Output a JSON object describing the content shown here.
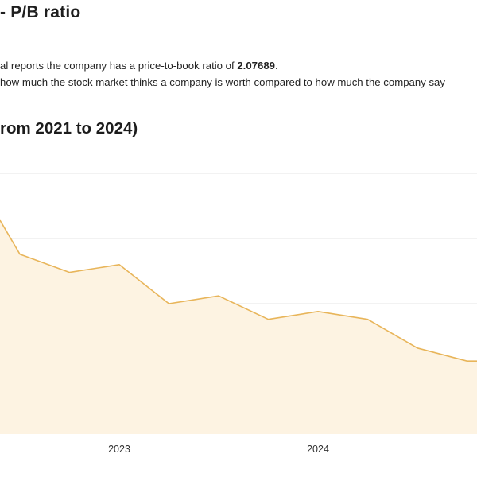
{
  "section": {
    "title": "- P/B ratio"
  },
  "description": {
    "line1_prefix": "al reports the company has a price-to-book ratio of ",
    "line1_value": "2.07689",
    "line1_suffix": ".",
    "line2": " how much the stock market thinks a company is worth compared to how much the company say"
  },
  "chart_title": "rom 2021 to 2024)",
  "colors": {
    "line": "#e8b55a",
    "area": "#fdf3e2",
    "grid": "#e6e6e6"
  },
  "chart_data": {
    "type": "area",
    "title": "rom 2021 to 2024)",
    "x_tick_labels": [
      "2023",
      "2024"
    ],
    "x_ticks": [
      2023.0,
      2024.0
    ],
    "xlim": [
      2022.4,
      2024.8
    ],
    "ylim": [
      2.0,
      3.0
    ],
    "grid": true,
    "series": [
      {
        "x": [
          2022.4,
          2022.5,
          2022.75,
          2023.0,
          2023.25,
          2023.5,
          2023.75,
          2024.0,
          2024.25,
          2024.5,
          2024.75,
          2024.8
        ],
        "values": [
          2.82,
          2.69,
          2.62,
          2.65,
          2.5,
          2.53,
          2.44,
          2.47,
          2.44,
          2.33,
          2.28,
          2.28
        ]
      }
    ]
  }
}
